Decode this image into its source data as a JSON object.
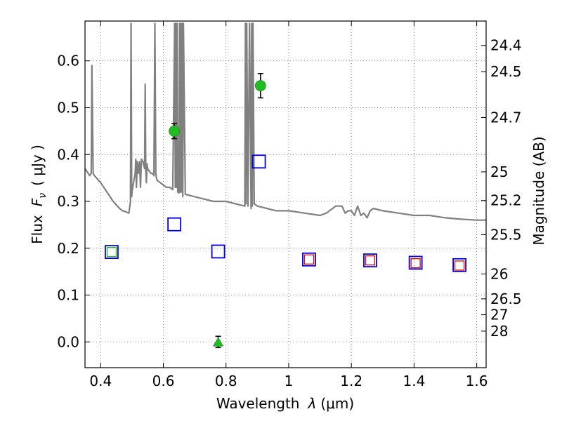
{
  "chart_data": {
    "type": "scatter",
    "xlabel": "Wavelength",
    "xlabel_symbol": "λ",
    "xlabel_unit": "(μm)",
    "ylabel_left": "Flux",
    "ylabel_symbol": "F",
    "ylabel_sub": "ν",
    "ylabel_unit": "( μJy )",
    "ylabel_right": "Magnitude (AB)",
    "xlim": [
      0.35,
      1.63
    ],
    "ylim": [
      -0.055,
      0.685
    ],
    "grid": true,
    "x_ticks": [
      0.4,
      0.6,
      0.8,
      1.0,
      1.2,
      1.4,
      1.6
    ],
    "x_tick_labels": [
      "0.4",
      "0.6",
      "0.8",
      "1",
      "1.2",
      "1.4",
      "1.6"
    ],
    "y_ticks": [
      0.0,
      0.1,
      0.2,
      0.3,
      0.4,
      0.5,
      0.6
    ],
    "y_tick_labels": [
      "0.0",
      "0.1",
      "0.2",
      "0.3",
      "0.4",
      "0.5",
      "0.6"
    ],
    "right_ticks": [
      {
        "flux": 0.633,
        "label": "24.4"
      },
      {
        "flux": 0.577,
        "label": "24.5"
      },
      {
        "flux": 0.479,
        "label": "24.7"
      },
      {
        "flux": 0.363,
        "label": "25"
      },
      {
        "flux": 0.302,
        "label": "25.2"
      },
      {
        "flux": 0.229,
        "label": "25.5"
      },
      {
        "flux": 0.145,
        "label": "26"
      },
      {
        "flux": 0.092,
        "label": "26.5"
      },
      {
        "flux": 0.058,
        "label": "27"
      },
      {
        "flux": 0.023,
        "label": "28"
      }
    ],
    "colors": {
      "model": "#808080",
      "detections": "#22bb22",
      "blue_squares": "#0000dd",
      "red_squares": "#ee0000",
      "green_squares": "#22bb22",
      "errorbar": "#000000"
    },
    "series": [
      {
        "type": "line",
        "x": [
          0.35,
          0.36,
          0.365,
          0.37,
          0.372,
          0.376,
          0.38,
          0.4,
          0.42,
          0.44,
          0.46,
          0.47,
          0.48,
          0.49,
          0.495,
          0.497,
          0.499,
          0.5,
          0.505,
          0.51,
          0.512,
          0.514,
          0.517,
          0.52,
          0.524,
          0.527,
          0.53,
          0.535,
          0.54,
          0.542,
          0.544,
          0.546,
          0.548,
          0.55,
          0.555,
          0.56,
          0.565,
          0.57,
          0.573,
          0.576,
          0.578,
          0.58,
          0.59,
          0.6,
          0.61,
          0.62,
          0.63,
          0.636,
          0.638,
          0.64,
          0.642,
          0.644,
          0.646,
          0.65,
          0.652,
          0.654,
          0.656,
          0.658,
          0.66,
          0.662,
          0.664,
          0.67,
          0.7,
          0.73,
          0.76,
          0.8,
          0.83,
          0.86,
          0.862,
          0.864,
          0.866,
          0.87,
          0.875,
          0.88,
          0.882,
          0.884,
          0.886,
          0.89,
          0.9,
          0.93,
          0.96,
          1.0,
          1.05,
          1.1,
          1.12,
          1.15,
          1.17,
          1.18,
          1.19,
          1.2,
          1.21,
          1.22,
          1.23,
          1.24,
          1.25,
          1.26,
          1.27,
          1.3,
          1.35,
          1.4,
          1.45,
          1.5,
          1.55,
          1.6,
          1.63
        ],
        "y": [
          0.37,
          0.36,
          0.355,
          0.36,
          0.59,
          0.36,
          0.355,
          0.34,
          0.32,
          0.3,
          0.285,
          0.28,
          0.278,
          0.275,
          0.3,
          0.68,
          0.31,
          0.32,
          0.34,
          0.36,
          0.39,
          0.33,
          0.385,
          0.36,
          0.385,
          0.33,
          0.39,
          0.385,
          0.37,
          0.55,
          0.37,
          0.34,
          0.38,
          0.37,
          0.365,
          0.36,
          0.36,
          0.355,
          0.68,
          0.36,
          0.35,
          0.345,
          0.34,
          0.335,
          0.33,
          0.33,
          0.325,
          0.68,
          0.33,
          0.68,
          0.33,
          0.68,
          0.32,
          0.318,
          0.68,
          0.32,
          0.68,
          0.32,
          0.68,
          0.31,
          0.68,
          0.315,
          0.31,
          0.305,
          0.3,
          0.3,
          0.295,
          0.29,
          0.68,
          0.295,
          0.68,
          0.29,
          0.68,
          0.285,
          0.68,
          0.29,
          0.68,
          0.295,
          0.29,
          0.285,
          0.28,
          0.28,
          0.275,
          0.27,
          0.275,
          0.29,
          0.29,
          0.275,
          0.28,
          0.28,
          0.27,
          0.29,
          0.27,
          0.275,
          0.265,
          0.28,
          0.285,
          0.28,
          0.275,
          0.27,
          0.27,
          0.265,
          0.262,
          0.26,
          0.26
        ]
      },
      {
        "type": "errorbar",
        "marker": "circle",
        "x": [
          0.635,
          0.91
        ],
        "y": [
          0.45,
          0.547
        ],
        "yerr": [
          0.016,
          0.026
        ]
      },
      {
        "type": "errorbar",
        "marker": "triangle",
        "x": [
          0.775
        ],
        "y": [
          0.0
        ],
        "yerr": [
          0.012
        ]
      },
      {
        "type": "scatter",
        "marker": "square-open",
        "x": [
          0.435,
          0.635,
          0.775,
          0.905,
          1.065,
          1.26,
          1.405,
          1.545
        ],
        "y": [
          0.192,
          0.251,
          0.193,
          0.385,
          0.176,
          0.174,
          0.169,
          0.164
        ]
      },
      {
        "type": "scatter",
        "marker": "square-open",
        "x": [
          1.065,
          1.26,
          1.405,
          1.545
        ],
        "y": [
          0.176,
          0.174,
          0.168,
          0.163
        ]
      },
      {
        "type": "scatter",
        "marker": "square-open",
        "x": [
          0.435
        ],
        "y": [
          0.192
        ]
      }
    ]
  }
}
